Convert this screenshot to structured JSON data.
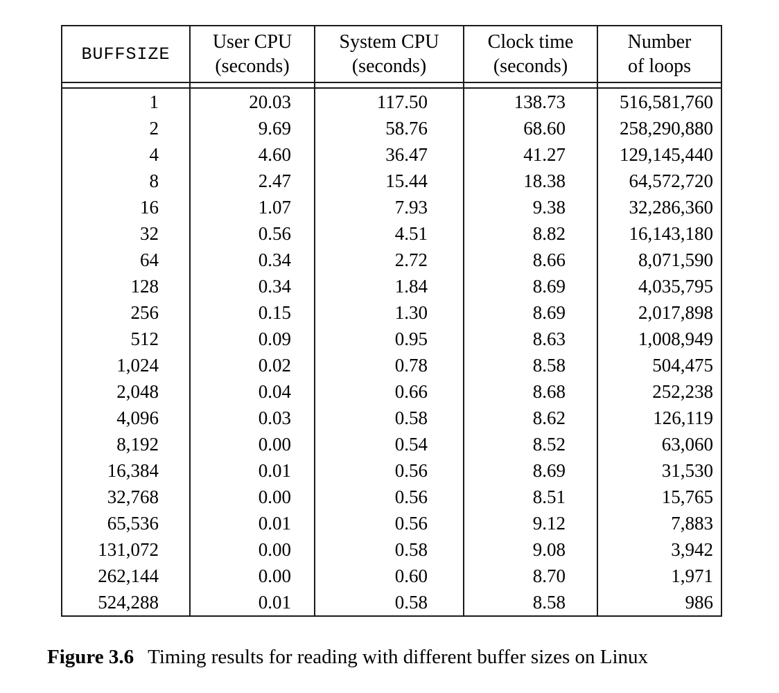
{
  "colors": {
    "background": "#ffffff",
    "border": "#1a1a1a",
    "text": "#000000"
  },
  "table": {
    "headers": [
      {
        "label": "BUFFSIZE",
        "sub": ""
      },
      {
        "label": "User CPU",
        "sub": "(seconds)"
      },
      {
        "label": "System CPU",
        "sub": "(seconds)"
      },
      {
        "label": "Clock time",
        "sub": "(seconds)"
      },
      {
        "label": "Number",
        "sub": "of loops"
      }
    ],
    "column_names": [
      "buffsize",
      "user-cpu",
      "system-cpu",
      "clock-time",
      "loops"
    ],
    "rows": [
      [
        "1",
        "20.03",
        "117.50",
        "138.73",
        "516,581,760"
      ],
      [
        "2",
        "9.69",
        "58.76",
        "68.60",
        "258,290,880"
      ],
      [
        "4",
        "4.60",
        "36.47",
        "41.27",
        "129,145,440"
      ],
      [
        "8",
        "2.47",
        "15.44",
        "18.38",
        "64,572,720"
      ],
      [
        "16",
        "1.07",
        "7.93",
        "9.38",
        "32,286,360"
      ],
      [
        "32",
        "0.56",
        "4.51",
        "8.82",
        "16,143,180"
      ],
      [
        "64",
        "0.34",
        "2.72",
        "8.66",
        "8,071,590"
      ],
      [
        "128",
        "0.34",
        "1.84",
        "8.69",
        "4,035,795"
      ],
      [
        "256",
        "0.15",
        "1.30",
        "8.69",
        "2,017,898"
      ],
      [
        "512",
        "0.09",
        "0.95",
        "8.63",
        "1,008,949"
      ],
      [
        "1,024",
        "0.02",
        "0.78",
        "8.58",
        "504,475"
      ],
      [
        "2,048",
        "0.04",
        "0.66",
        "8.68",
        "252,238"
      ],
      [
        "4,096",
        "0.03",
        "0.58",
        "8.62",
        "126,119"
      ],
      [
        "8,192",
        "0.00",
        "0.54",
        "8.52",
        "63,060"
      ],
      [
        "16,384",
        "0.01",
        "0.56",
        "8.69",
        "31,530"
      ],
      [
        "32,768",
        "0.00",
        "0.56",
        "8.51",
        "15,765"
      ],
      [
        "65,536",
        "0.01",
        "0.56",
        "9.12",
        "7,883"
      ],
      [
        "131,072",
        "0.00",
        "0.58",
        "9.08",
        "3,942"
      ],
      [
        "262,144",
        "0.00",
        "0.60",
        "8.70",
        "1,971"
      ],
      [
        "524,288",
        "0.01",
        "0.58",
        "8.58",
        "986"
      ]
    ]
  },
  "caption": {
    "label": "Figure 3.6",
    "text": "Timing results for reading with different buffer sizes on Linux"
  }
}
